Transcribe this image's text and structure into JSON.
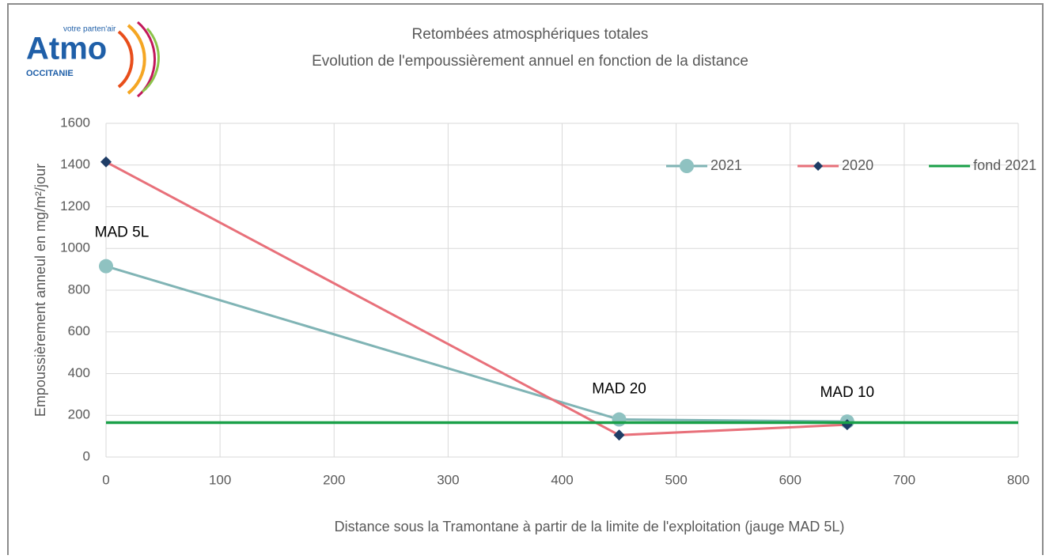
{
  "logo": {
    "name": "Atmo",
    "tagline": "votre parten'air",
    "region": "OCCITANIE"
  },
  "chart_data": {
    "type": "line",
    "title": "Retombées atmosphériques totales",
    "subtitle": "Evolution de l'empoussièrement annuel en fonction de la distance",
    "x_label": "Distance sous la Tramontane à partir de la limite de l'exploitation (jauge MAD 5L)",
    "y_label": "Empoussièrement anneul en mg/m²/jour",
    "xlim": [
      0,
      800
    ],
    "xticks": [
      0,
      100,
      200,
      300,
      400,
      500,
      600,
      700,
      800
    ],
    "ylim": [
      0,
      1600
    ],
    "yticks": [
      0,
      200,
      400,
      600,
      800,
      1000,
      1200,
      1400,
      1600
    ],
    "grid": true,
    "legend": "upper right",
    "annotations": [
      "MAD 5L",
      "MAD 20",
      "MAD 10"
    ],
    "series": [
      {
        "name": "2021",
        "color": "#80b4b5",
        "marker": "circle",
        "marker_color": "#8fc2c1",
        "x": [
          0,
          450,
          650
        ],
        "values": [
          915,
          180,
          170
        ]
      },
      {
        "name": "2020",
        "color": "#e8707a",
        "marker": "diamond",
        "marker_color": "#1f3d66",
        "x": [
          0,
          450,
          650
        ],
        "values": [
          1415,
          105,
          155
        ]
      },
      {
        "name": "fond 2021",
        "color": "#1aa049",
        "marker": "none",
        "x": [
          0,
          800
        ],
        "values": [
          165,
          165
        ]
      }
    ]
  }
}
